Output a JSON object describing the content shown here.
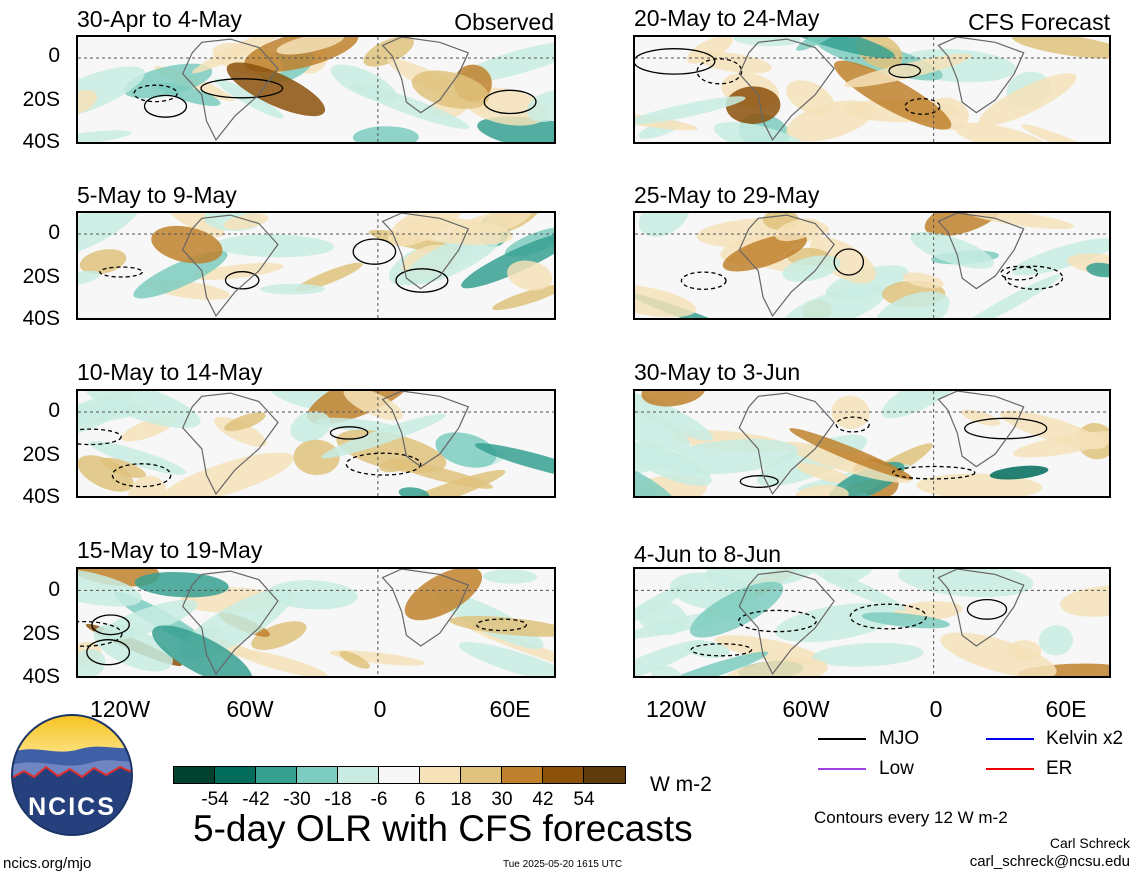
{
  "panels_left_header": "Observed",
  "panels_right_header": "CFS Forecast",
  "panels": [
    {
      "title": "30-Apr to 4-May"
    },
    {
      "title": "5-May to 9-May"
    },
    {
      "title": "10-May to 14-May"
    },
    {
      "title": "15-May to 19-May"
    },
    {
      "title": "20-May to 24-May"
    },
    {
      "title": "25-May to 29-May"
    },
    {
      "title": "30-May to 3-Jun"
    },
    {
      "title": "4-Jun to 8-Jun"
    }
  ],
  "lat_labels": [
    "0",
    "20S",
    "40S"
  ],
  "lon_labels": [
    "120W",
    "60W",
    "0",
    "60E"
  ],
  "colorbar": {
    "ticks": [
      "-54",
      "-42",
      "-30",
      "-18",
      "-6",
      "6",
      "18",
      "30",
      "42",
      "54"
    ],
    "colors": [
      "#00422f",
      "#006c5c",
      "#36a090",
      "#7ccdc0",
      "#c8ece2",
      "#f7f7f7",
      "#f5e2b8",
      "#dfc27d",
      "#bf812d",
      "#8c510a",
      "#5e3b0c"
    ],
    "units": "W m-2"
  },
  "main_title": "5-day OLR with CFS forecasts",
  "legend": [
    {
      "label": "MJO",
      "color": "#000000"
    },
    {
      "label": "Kelvin x2",
      "color": "#0000ee"
    },
    {
      "label": "Low",
      "color": "#a040e0"
    },
    {
      "label": "ER",
      "color": "#ee0000"
    }
  ],
  "contour_note": "Contours every 12 W m-2",
  "author": "Carl Schreck",
  "email": "carl_schreck@ncsu.edu",
  "website": "ncics.org/mjo",
  "timestamp": "Tue 2025-05-20 1615 UTC",
  "logo": {
    "text": "NCICS"
  }
}
